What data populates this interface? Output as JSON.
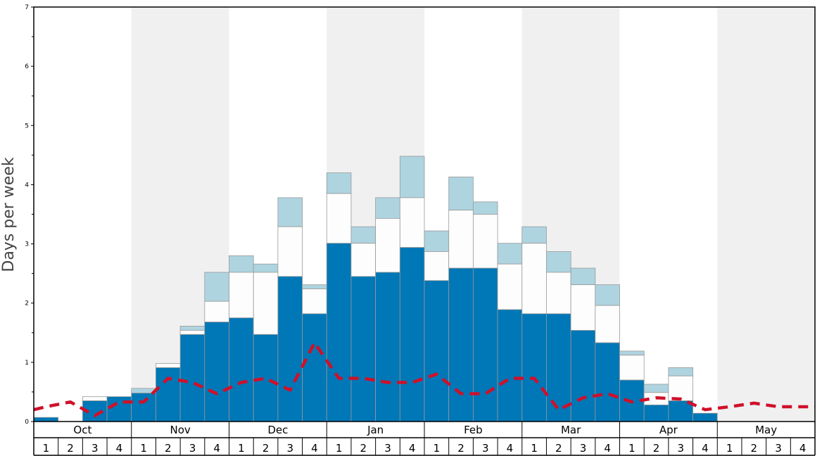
{
  "chart_data": {
    "type": "bar",
    "ylabel": "Days per week",
    "ylim": [
      0,
      7
    ],
    "yticks": [
      "0",
      "1",
      "2",
      "3",
      "4",
      "5",
      "6",
      "7"
    ],
    "months": [
      "Oct",
      "Nov",
      "Dec",
      "Jan",
      "Feb",
      "Mar",
      "Apr",
      "May"
    ],
    "week_labels": [
      "1",
      "2",
      "3",
      "4"
    ],
    "colors": {
      "dark": "#0077b6",
      "middle": "#fdfdfd",
      "light": "#aed4e0",
      "line": "#d0102a",
      "band": "#f0f0f0"
    },
    "series": [
      {
        "name": "",
        "values": [
          0.07,
          0,
          0.35,
          0.42,
          0.48,
          0.91,
          1.47,
          1.68,
          1.75,
          1.47,
          2.45,
          1.82,
          3.01,
          2.45,
          2.52,
          2.94,
          2.38,
          2.59,
          2.59,
          1.89,
          1.82,
          1.82,
          1.54,
          1.33,
          0.7,
          0.28,
          0.35,
          0.14,
          0,
          0,
          0,
          0
        ]
      },
      {
        "name": "",
        "values": [
          0.07,
          0,
          0.42,
          0.42,
          0.48,
          0.98,
          1.54,
          2.03,
          2.52,
          2.52,
          3.29,
          2.24,
          3.85,
          3.01,
          3.43,
          3.78,
          2.87,
          3.57,
          3.5,
          2.66,
          3.01,
          2.52,
          2.31,
          1.96,
          1.12,
          0.49,
          0.77,
          0.14,
          0,
          0,
          0,
          0
        ]
      },
      {
        "name": "",
        "values": [
          0.07,
          0,
          0.42,
          0.42,
          0.56,
          0.98,
          1.61,
          2.52,
          2.8,
          2.66,
          3.78,
          2.31,
          4.2,
          3.29,
          3.78,
          4.48,
          3.22,
          4.13,
          3.71,
          3.01,
          3.29,
          2.87,
          2.59,
          2.31,
          1.19,
          0.63,
          0.91,
          0.14,
          0,
          0,
          0,
          0
        ]
      },
      {
        "name": "",
        "type": "line",
        "values": [
          0.2,
          0.25,
          0.33,
          0.1,
          0.33,
          0.33,
          0.73,
          0.66,
          0.47,
          0.66,
          0.73,
          0.53,
          1.33,
          0.73,
          0.73,
          0.66,
          0.66,
          0.8,
          0.47,
          0.47,
          0.73,
          0.73,
          0.2,
          0.4,
          0.47,
          0.33,
          0.4,
          0.38,
          0.2,
          0.25,
          0.31,
          0.25,
          0.25
        ]
      }
    ]
  }
}
